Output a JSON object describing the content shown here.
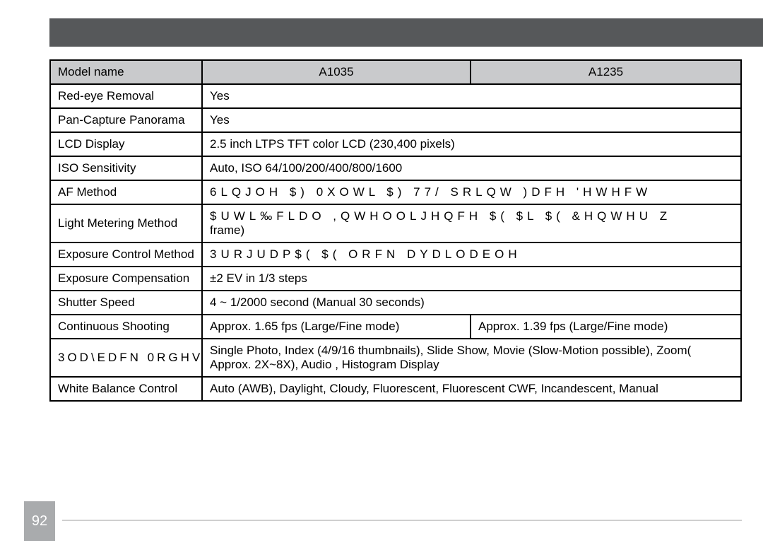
{
  "header": {
    "model_label": "Model name",
    "model_a": "A1035",
    "model_b": "A1235"
  },
  "rows": {
    "red_eye": {
      "label": "Red-eye Removal",
      "value": "Yes"
    },
    "panorama": {
      "label": "Pan-Capture Panorama",
      "value": "Yes"
    },
    "lcd": {
      "label": "LCD Display",
      "value": "2.5 inch LTPS TFT color LCD (230,400 pixels)"
    },
    "iso": {
      "label": "ISO Sensitivity",
      "value": "Auto, ISO 64/100/200/400/800/1600"
    },
    "af": {
      "label": "AF Method",
      "value": "6LQJOH $)  0XOWL $)  77/   SRLQW   )DFH 'HWHFW"
    },
    "meter": {
      "label": "Light Metering Method",
      "line1": "$UWL‰FLDO ,QWHOOLJHQFH $( $L $(  &HQWHU Z",
      "line2": "frame)"
    },
    "exposure_ctrl": {
      "label": "Exposure Control Method",
      "value": "3URJUDP$(  $( ORFN DYDLODEOH"
    },
    "exposure_comp": {
      "label": "Exposure Compensation",
      "value": "±2 EV in 1/3 steps"
    },
    "shutter": {
      "label": "Shutter Speed",
      "value": "4 ~ 1/2000 second (Manual 30 seconds)"
    },
    "continuous": {
      "label": "Continuous Shooting",
      "a": "Approx. 1.65 fps (Large/Fine mode)",
      "b": "Approx. 1.39 fps (Large/Fine mode)"
    },
    "playback": {
      "label": "3OD\\EDFN 0RGHV",
      "value": "Single Photo, Index (4/9/16 thumbnails), Slide Show, Movie (Slow-Motion possible), Zoom( Approx. 2X~8X), Audio , Histogram Display"
    },
    "wb": {
      "label": "White Balance Control",
      "value": "Auto (AWB), Daylight, Cloudy, Fluorescent, Fluorescent CWF, Incandescent, Manual"
    }
  },
  "page_number": "92",
  "colors": {
    "top_bar": "#56585a",
    "header_bg": "#c9cacc",
    "border": "#000000",
    "page_num_bg": "#a9abad",
    "footer_rule": "#cfcfcf"
  }
}
